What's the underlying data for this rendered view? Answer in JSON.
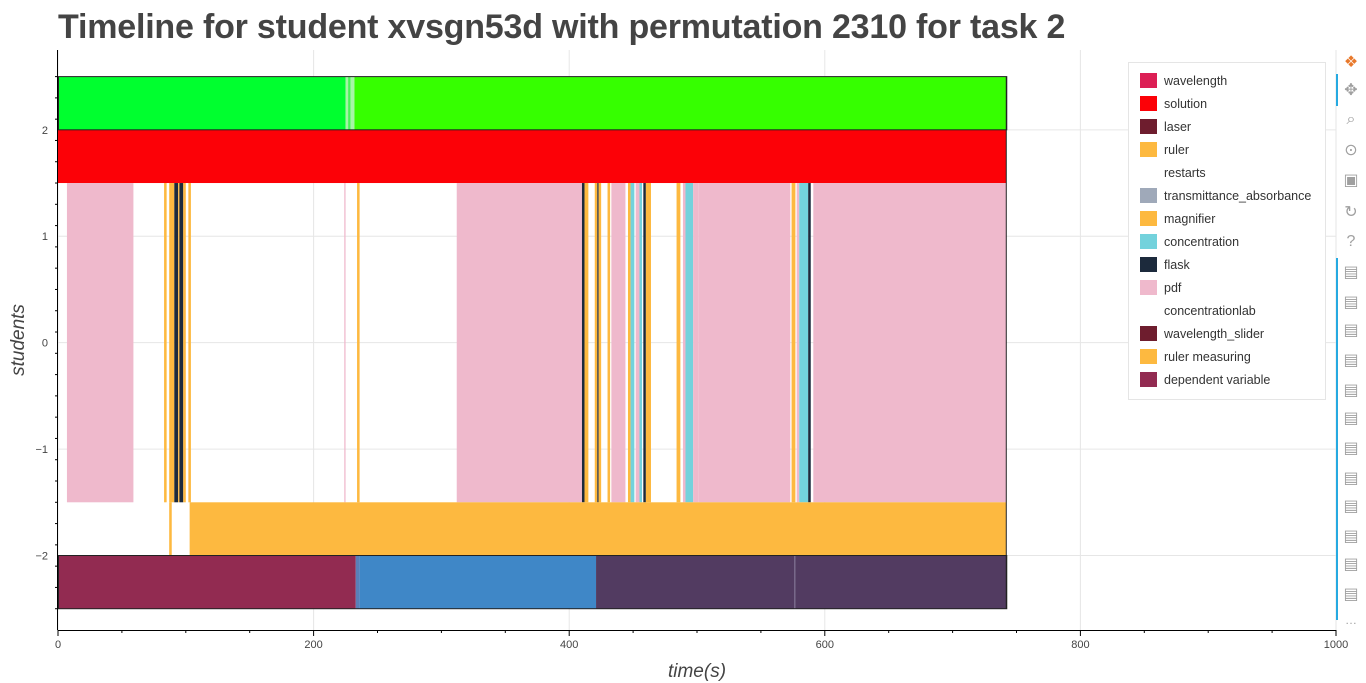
{
  "title": "Timeline for student xvsgn53d with permutation 2310 for task 2",
  "chart_data": {
    "type": "timeline",
    "xlabel": "time(s)",
    "ylabel": "students",
    "xlim": [
      0,
      1000
    ],
    "ylim": [
      -2.7,
      2.75
    ],
    "x_ticks": [
      0,
      200,
      400,
      600,
      800,
      1000
    ],
    "y_ticks": [
      -2,
      -1,
      0,
      1,
      2
    ],
    "x_tick_labels": [
      "0",
      "200",
      "400",
      "600",
      "800",
      "1000"
    ],
    "y_tick_labels": [
      "−2",
      "−1",
      "0",
      "1",
      "2"
    ],
    "grid": true,
    "legend_position": "top-right",
    "rows": [
      {
        "y_range": [
          2.0,
          2.5
        ],
        "segments": [
          {
            "start": 0,
            "end": 225,
            "color": "#00ff2f"
          },
          {
            "start": 225,
            "end": 227,
            "color": "#a6f5a6"
          },
          {
            "start": 227,
            "end": 229,
            "color": "#46f555"
          },
          {
            "start": 229,
            "end": 232,
            "color": "#a6f5a6"
          },
          {
            "start": 232,
            "end": 742,
            "color": "#36ff00"
          }
        ]
      },
      {
        "y_range": [
          1.5,
          2.0
        ],
        "segments": [
          {
            "start": 0,
            "end": 742,
            "color": "#fc0107"
          }
        ]
      },
      {
        "y_range": [
          -1.5,
          1.5
        ],
        "segments": [
          {
            "start": 7,
            "end": 59,
            "color": "#efb9cc"
          },
          {
            "start": 83,
            "end": 85,
            "color": "#fdb940"
          },
          {
            "start": 87,
            "end": 91,
            "color": "#fdb940"
          },
          {
            "start": 91,
            "end": 94,
            "color": "#1c2a3c"
          },
          {
            "start": 94,
            "end": 95,
            "color": "#fdb940"
          },
          {
            "start": 95,
            "end": 98,
            "color": "#1c2a3c"
          },
          {
            "start": 98,
            "end": 100,
            "color": "#fdb940"
          },
          {
            "start": 102,
            "end": 104,
            "color": "#fdb940"
          },
          {
            "start": 224,
            "end": 225,
            "color": "#efb9cc"
          },
          {
            "start": 234,
            "end": 236,
            "color": "#fdb940"
          },
          {
            "start": 312,
            "end": 410,
            "color": "#efb9cc"
          },
          {
            "start": 410,
            "end": 412,
            "color": "#1c2a3c"
          },
          {
            "start": 412,
            "end": 415,
            "color": "#fdb940"
          },
          {
            "start": 420,
            "end": 422,
            "color": "#fdb940"
          },
          {
            "start": 422,
            "end": 423,
            "color": "#1c2a3c"
          },
          {
            "start": 423,
            "end": 425,
            "color": "#fdb940"
          },
          {
            "start": 430,
            "end": 432,
            "color": "#fdb940"
          },
          {
            "start": 433,
            "end": 444,
            "color": "#efb9cc"
          },
          {
            "start": 446,
            "end": 448,
            "color": "#fdb940"
          },
          {
            "start": 448,
            "end": 451,
            "color": "#73d2dc"
          },
          {
            "start": 452,
            "end": 455,
            "color": "#efb9cc"
          },
          {
            "start": 455,
            "end": 457,
            "color": "#73d2dc"
          },
          {
            "start": 458,
            "end": 460,
            "color": "#1c2a3c"
          },
          {
            "start": 460,
            "end": 464,
            "color": "#fdb940"
          },
          {
            "start": 484,
            "end": 487,
            "color": "#fdb940"
          },
          {
            "start": 489,
            "end": 491,
            "color": "#efb9cc"
          },
          {
            "start": 491,
            "end": 497,
            "color": "#73d2dc"
          },
          {
            "start": 497,
            "end": 501,
            "color": "#efb9cc"
          },
          {
            "start": 501,
            "end": 573,
            "color": "#efb9cc"
          },
          {
            "start": 574,
            "end": 577,
            "color": "#fdb940"
          },
          {
            "start": 578,
            "end": 580,
            "color": "#efb9cc"
          },
          {
            "start": 580,
            "end": 587,
            "color": "#73d2dc"
          },
          {
            "start": 587,
            "end": 589,
            "color": "#1c2a3c"
          },
          {
            "start": 591,
            "end": 742,
            "color": "#efb9cc"
          }
        ]
      },
      {
        "y_range": [
          -2.0,
          -1.5
        ],
        "segments": [
          {
            "start": 87,
            "end": 89,
            "color": "#fdb940"
          },
          {
            "start": 103,
            "end": 742,
            "color": "#fdb940"
          }
        ]
      },
      {
        "y_range": [
          -2.5,
          -2.0
        ],
        "segments": [
          {
            "start": 0,
            "end": 233,
            "color": "#922b51"
          },
          {
            "start": 233,
            "end": 236,
            "color": "#5a7fb8"
          },
          {
            "start": 236,
            "end": 421,
            "color": "#3f87c7"
          },
          {
            "start": 421,
            "end": 576,
            "color": "#523b61"
          },
          {
            "start": 576,
            "end": 577,
            "color": "#6a5a7f"
          },
          {
            "start": 577,
            "end": 742,
            "color": "#523b61"
          }
        ]
      }
    ],
    "legend": [
      {
        "label": "wavelength",
        "color": "#dc1f55"
      },
      {
        "label": "solution",
        "color": "#fc0107"
      },
      {
        "label": "laser",
        "color": "#6e1d2e"
      },
      {
        "label": "ruler",
        "color": "#fdb940"
      },
      {
        "label": "restarts",
        "color": "#ffffff"
      },
      {
        "label": "transmittance_absorbance",
        "color": "#9fa9b9"
      },
      {
        "label": "magnifier",
        "color": "#fdb940"
      },
      {
        "label": "concentration",
        "color": "#73d2dc"
      },
      {
        "label": "flask",
        "color": "#1c2a3c"
      },
      {
        "label": "pdf",
        "color": "#efb9cc"
      },
      {
        "label": "concentrationlab",
        "color": "#ffffff"
      },
      {
        "label": "wavelength_slider",
        "color": "#6e1d2e"
      },
      {
        "label": "ruler measuring",
        "color": "#fdb940"
      },
      {
        "label": "dependent variable",
        "color": "#922b51"
      }
    ]
  },
  "toolbar": {
    "items": [
      {
        "name": "bokeh-logo-icon",
        "glyph": "❖"
      },
      {
        "name": "pan-tool-icon",
        "glyph": "✥"
      },
      {
        "name": "box-zoom-tool-icon",
        "glyph": "⌕"
      },
      {
        "name": "wheel-zoom-tool-icon",
        "glyph": "⊙"
      },
      {
        "name": "save-tool-icon",
        "glyph": "▣"
      },
      {
        "name": "reset-tool-icon",
        "glyph": "↻"
      },
      {
        "name": "help-tool-icon",
        "glyph": "?"
      },
      {
        "name": "hover-tool-icon",
        "glyph": "▤"
      },
      {
        "name": "hover-tool-icon",
        "glyph": "▤"
      },
      {
        "name": "hover-tool-icon",
        "glyph": "▤"
      },
      {
        "name": "hover-tool-icon",
        "glyph": "▤"
      },
      {
        "name": "hover-tool-icon",
        "glyph": "▤"
      },
      {
        "name": "hover-tool-icon",
        "glyph": "▤"
      },
      {
        "name": "hover-tool-icon",
        "glyph": "▤"
      },
      {
        "name": "hover-tool-icon",
        "glyph": "▤"
      },
      {
        "name": "hover-tool-icon",
        "glyph": "▤"
      },
      {
        "name": "hover-tool-icon",
        "glyph": "▤"
      },
      {
        "name": "hover-tool-icon",
        "glyph": "▤"
      },
      {
        "name": "hover-tool-icon",
        "glyph": "▤"
      },
      {
        "name": "more-tools-icon",
        "glyph": "…"
      }
    ]
  }
}
